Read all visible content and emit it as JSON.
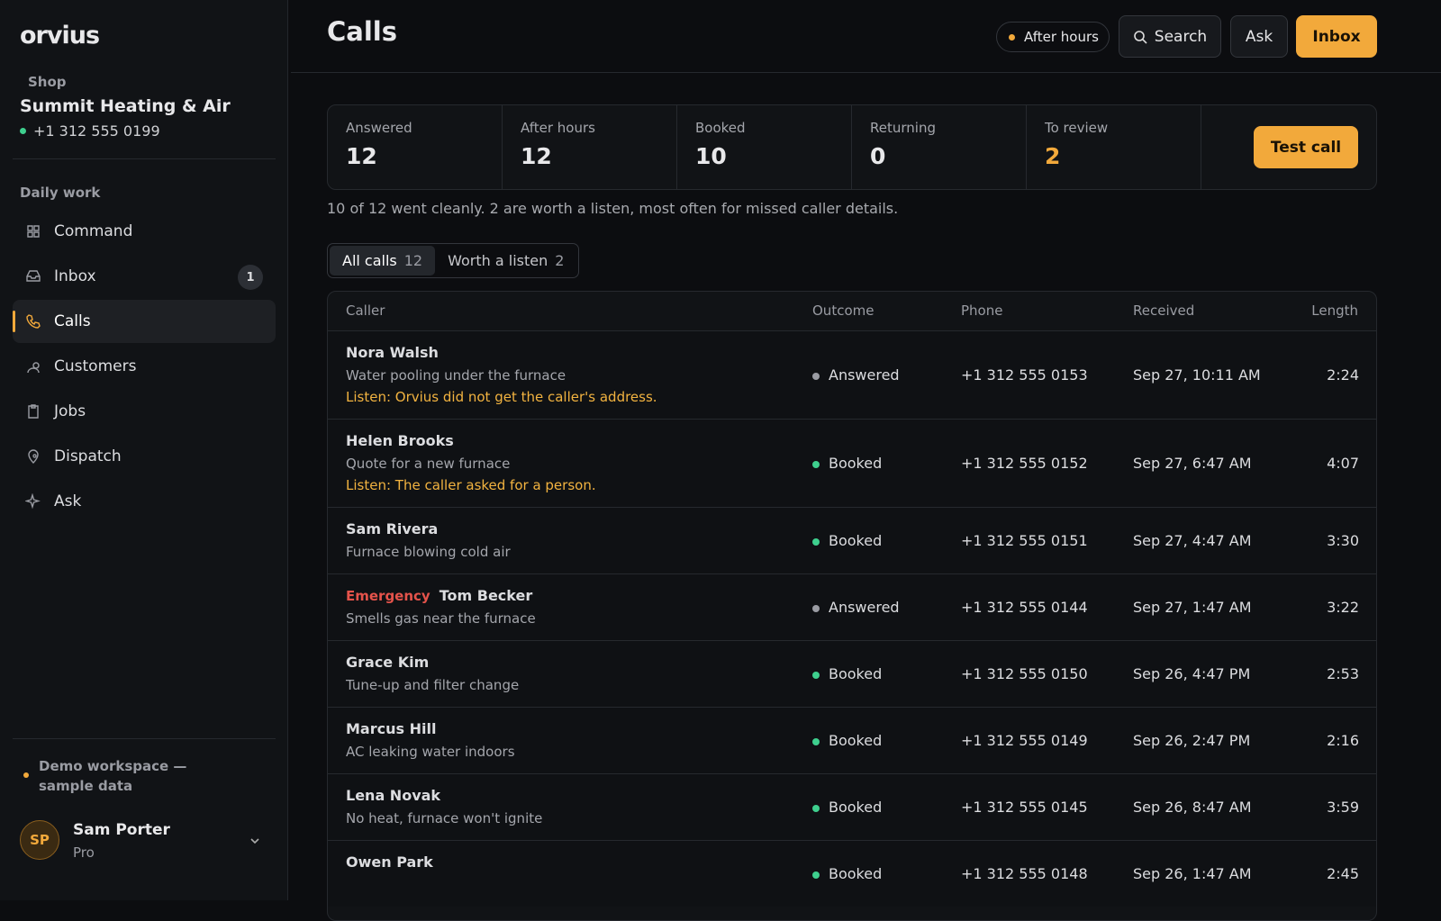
{
  "brand": "orvius",
  "shop": {
    "label": "Shop",
    "name": "Summit Heating & Air",
    "phone": "+1 312 555 0199"
  },
  "nav": {
    "section": "Daily work",
    "items": [
      {
        "label": "Command"
      },
      {
        "label": "Inbox",
        "badge": 1
      },
      {
        "label": "Calls",
        "active": true
      },
      {
        "label": "Customers"
      },
      {
        "label": "Jobs"
      },
      {
        "label": "Dispatch"
      },
      {
        "label": "Ask"
      }
    ]
  },
  "demo_note": "Demo workspace — sample data",
  "user": {
    "initials": "SP",
    "name": "Sam Porter",
    "plan": "Pro"
  },
  "header": {
    "title": "Calls",
    "status": "After hours",
    "buttons": [
      "Search",
      "Ask",
      "Inbox"
    ]
  },
  "stats": [
    {
      "label": "Answered",
      "value": 12
    },
    {
      "label": "After hours",
      "value": 12
    },
    {
      "label": "Booked",
      "value": 10
    },
    {
      "label": "Returning",
      "value": 0
    },
    {
      "label": "To review",
      "value": 2,
      "highlight": true
    }
  ],
  "test_call": "Test call",
  "summary": "10 of 12 went cleanly. 2 are worth a listen, most often for missed caller details.",
  "tabs": [
    {
      "label": "All calls",
      "count": 12,
      "active": true
    },
    {
      "label": "Worth a listen",
      "count": 2
    }
  ],
  "table": {
    "columns": [
      "Caller",
      "Outcome",
      "Phone",
      "Received",
      "Length"
    ],
    "rows": [
      {
        "caller": "Nora Walsh",
        "topic": "Water pooling under the furnace",
        "note": "Listen: Orvius did not get the caller's address.",
        "outcome": "Answered",
        "phone": "+1 312 555 0153",
        "received": "Sep 27, 10:11 AM",
        "length": "2:24"
      },
      {
        "caller": "Helen Brooks",
        "topic": "Quote for a new furnace",
        "note": "Listen: The caller asked for a person.",
        "outcome": "Booked",
        "phone": "+1 312 555 0152",
        "received": "Sep 27, 6:47 AM",
        "length": "4:07"
      },
      {
        "caller": "Sam Rivera",
        "topic": "Furnace blowing cold air",
        "outcome": "Booked",
        "phone": "+1 312 555 0151",
        "received": "Sep 27, 4:47 AM",
        "length": "3:30"
      },
      {
        "tag": "Emergency",
        "caller": "Tom Becker",
        "topic": "Smells gas near the furnace",
        "outcome": "Answered",
        "phone": "+1 312 555 0144",
        "received": "Sep 27, 1:47 AM",
        "length": "3:22"
      },
      {
        "caller": "Grace Kim",
        "topic": "Tune-up and filter change",
        "outcome": "Booked",
        "phone": "+1 312 555 0150",
        "received": "Sep 26, 4:47 PM",
        "length": "2:53"
      },
      {
        "caller": "Marcus Hill",
        "topic": "AC leaking water indoors",
        "outcome": "Booked",
        "phone": "+1 312 555 0149",
        "received": "Sep 26, 2:47 PM",
        "length": "2:16"
      },
      {
        "caller": "Lena Novak",
        "topic": "No heat, furnace won't ignite",
        "outcome": "Booked",
        "phone": "+1 312 555 0145",
        "received": "Sep 26, 8:47 AM",
        "length": "3:59"
      },
      {
        "caller": "Owen Park",
        "outcome": "Booked",
        "phone": "+1 312 555 0148",
        "received": "Sep 26, 1:47 AM",
        "length": "2:45"
      }
    ]
  }
}
